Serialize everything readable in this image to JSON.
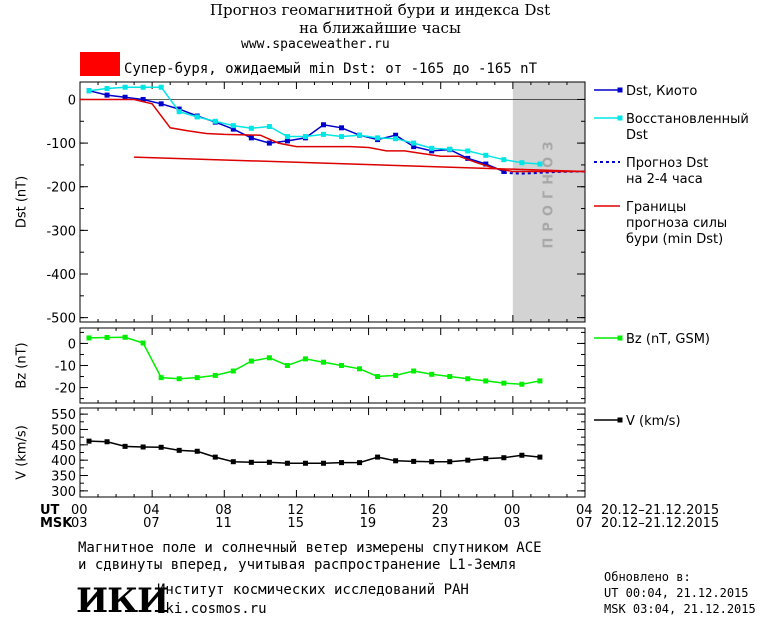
{
  "header": {
    "title_line1": "Прогноз геомагнитной бури и индекса Dst",
    "title_line2": "на ближайшие часы",
    "url": "www.spaceweather.ru",
    "storm_label": "Супер-буря, ожидаемый min Dst: от -165 до -165 nT",
    "storm_color": "#ff0000"
  },
  "time_axis": {
    "ut_label": "UT",
    "msk_label": "MSK",
    "ut_ticks": [
      "00",
      "04",
      "08",
      "12",
      "16",
      "20",
      "00",
      "04"
    ],
    "msk_ticks": [
      "03",
      "07",
      "11",
      "15",
      "19",
      "23",
      "03",
      "07"
    ],
    "ut_range": "20.12–21.12.2015",
    "msk_range": "20.12–21.12.2015"
  },
  "forecast_label": "ПРОГНОЗ",
  "colors": {
    "dst": "#0000cc",
    "dst_restored": "#00e5e5",
    "forecast": "#0000cc",
    "bounds": "#dd0000",
    "bz": "#00ee00",
    "v": "#000000",
    "forecast_bg": "#d3d3d3"
  },
  "chart_data": [
    {
      "type": "line",
      "ylabel": "Dst (nT)",
      "ylim": [
        -510,
        40
      ],
      "yticks": [
        0,
        -100,
        -200,
        -300,
        -400,
        -500
      ],
      "xlim_hours": [
        0,
        28
      ],
      "forecast_from_hour": 24,
      "legend": [
        "Dst, Киото",
        "Восстановленный Dst",
        "Прогноз Dst на 2-4 часа",
        "Границы прогноза силы бури (min Dst)"
      ],
      "series": [
        {
          "name": "Dst, Киото",
          "x": [
            0.5,
            1.5,
            2.5,
            3.5,
            4.5,
            5.5,
            6.5,
            7.5,
            8.5,
            9.5,
            10.5,
            11.5,
            12.5,
            13.5,
            14.5,
            15.5,
            16.5,
            17.5,
            18.5,
            19.5,
            20.5,
            21.5,
            22.5,
            23.5
          ],
          "values": [
            20,
            10,
            5,
            0,
            -10,
            -22,
            -38,
            -52,
            -68,
            -88,
            -100,
            -95,
            -88,
            -58,
            -65,
            -82,
            -92,
            -82,
            -108,
            -118,
            -115,
            -135,
            -148,
            -165
          ]
        },
        {
          "name": "Восстановленный Dst",
          "x": [
            0.5,
            1.5,
            2.5,
            3.5,
            4.5,
            5.5,
            6.5,
            7.5,
            8.5,
            9.5,
            10.5,
            11.5,
            12.5,
            13.5,
            14.5,
            15.5,
            16.5,
            17.5,
            18.5,
            19.5,
            20.5,
            21.5,
            22.5,
            23.5,
            24.5,
            25.5
          ],
          "values": [
            20,
            25,
            28,
            28,
            28,
            -28,
            -40,
            -50,
            -60,
            -66,
            -62,
            -85,
            -85,
            -80,
            -85,
            -82,
            -88,
            -90,
            -100,
            -112,
            -114,
            -118,
            -128,
            -138,
            -145,
            -148
          ]
        },
        {
          "name": "Прогноз Dst на 2-4 часа",
          "x": [
            23.5,
            24.5,
            25.5,
            26.5,
            27.5,
            28
          ],
          "values": [
            -168,
            -170,
            -168,
            -166,
            -165,
            -165
          ]
        },
        {
          "name": "Границы прогноза силы бури (min Dst) upper",
          "x": [
            0,
            3,
            4,
            5,
            6,
            7,
            8,
            10,
            11,
            12,
            14,
            15,
            16,
            17,
            18,
            19,
            20,
            21,
            22,
            23,
            24,
            28
          ],
          "values": [
            0,
            0,
            -10,
            -65,
            -72,
            -78,
            -80,
            -82,
            -100,
            -108,
            -108,
            -108,
            -110,
            -118,
            -118,
            -124,
            -130,
            -130,
            -145,
            -158,
            -165,
            -165
          ]
        },
        {
          "name": "Границы прогноза силы бури (min Dst) lower",
          "x": [
            3,
            28
          ],
          "values": [
            -132,
            -165
          ]
        }
      ]
    },
    {
      "type": "line",
      "ylabel": "Bz (nT)",
      "ylim": [
        -27,
        7
      ],
      "yticks": [
        0,
        -10,
        -20
      ],
      "xlim_hours": [
        0,
        28
      ],
      "legend": [
        "Bz (nT, GSM)"
      ],
      "series": [
        {
          "name": "Bz (nT, GSM)",
          "x": [
            0.5,
            1.5,
            2.5,
            3.5,
            4.5,
            5.5,
            6.5,
            7.5,
            8.5,
            9.5,
            10.5,
            11.5,
            12.5,
            13.5,
            14.5,
            15.5,
            16.5,
            17.5,
            18.5,
            19.5,
            20.5,
            21.5,
            22.5,
            23.5,
            24.5,
            25.5
          ],
          "values": [
            2.5,
            2.7,
            2.8,
            0.2,
            -15.5,
            -16,
            -15.5,
            -14.5,
            -12.5,
            -8,
            -6.5,
            -10,
            -7,
            -8.5,
            -10,
            -11.5,
            -15,
            -14.5,
            -12.5,
            -14,
            -15,
            -16,
            -17,
            -18,
            -18.5,
            -17
          ]
        }
      ]
    },
    {
      "type": "line",
      "ylabel": "V (km/s)",
      "ylim": [
        280,
        570
      ],
      "yticks": [
        550,
        500,
        450,
        400,
        350,
        300
      ],
      "xlim_hours": [
        0,
        28
      ],
      "legend": [
        "V (km/s)"
      ],
      "series": [
        {
          "name": "V (km/s)",
          "x": [
            0.5,
            1.5,
            2.5,
            3.5,
            4.5,
            5.5,
            6.5,
            7.5,
            8.5,
            9.5,
            10.5,
            11.5,
            12.5,
            13.5,
            14.5,
            15.5,
            16.5,
            17.5,
            18.5,
            19.5,
            20.5,
            21.5,
            22.5,
            23.5,
            24.5,
            25.5
          ],
          "values": [
            462,
            460,
            445,
            443,
            442,
            432,
            429,
            410,
            395,
            393,
            393,
            390,
            390,
            390,
            392,
            392,
            410,
            398,
            396,
            395,
            395,
            400,
            405,
            408,
            416,
            410
          ]
        }
      ]
    }
  ],
  "footer": {
    "note_line1": "Магнитное поле и солнечный ветер измерены спутником ACE",
    "note_line2": "и сдвинуты вперед, учитывая распространение L1-Земля",
    "org_logo": "ИКИ",
    "org_name": "Институт космических исследований РАН",
    "org_url": "iki.cosmos.ru",
    "updated_label": "Обновлено в:",
    "updated_ut": "UT   00:04, 21.12.2015",
    "updated_msk": "MSK 03:04, 21.12.2015"
  }
}
